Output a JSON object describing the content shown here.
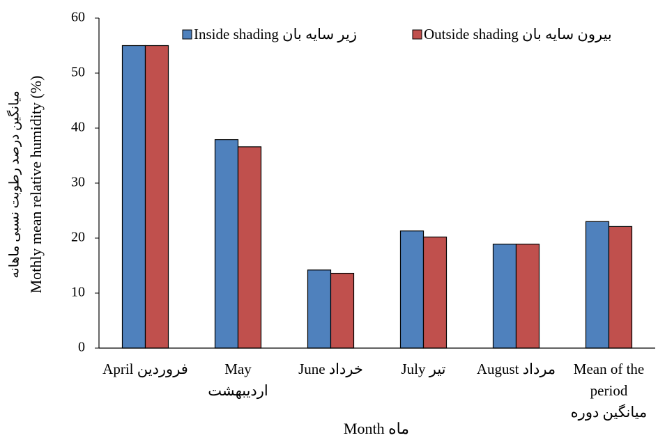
{
  "chart_data": {
    "type": "bar",
    "categories": [
      [
        "April فروردین"
      ],
      [
        "May",
        "اردیبهشت"
      ],
      [
        "June خرداد"
      ],
      [
        "July تیر"
      ],
      [
        "August مرداد"
      ],
      [
        "Mean of the",
        "period",
        "میانگین دوره"
      ]
    ],
    "series": [
      {
        "name": "Inside shading زیر سایه بان",
        "color": "#4f81bd",
        "values": [
          55,
          37.9,
          14.2,
          21.3,
          18.9,
          23
        ]
      },
      {
        "name": "Outside shading بیرون سایه بان",
        "color": "#c0504d",
        "values": [
          55,
          36.6,
          13.6,
          20.2,
          18.9,
          22.1
        ]
      }
    ],
    "x_label": "Month ماه",
    "y_label": [
      "میانگین درصد رطوبت نسبی ماهانه",
      "Mothly mean relative humidity (%)"
    ],
    "ylim": [
      0,
      60
    ],
    "yticks": [
      0,
      10,
      20,
      30,
      40,
      50,
      60
    ],
    "grid": false,
    "legend": "top"
  }
}
